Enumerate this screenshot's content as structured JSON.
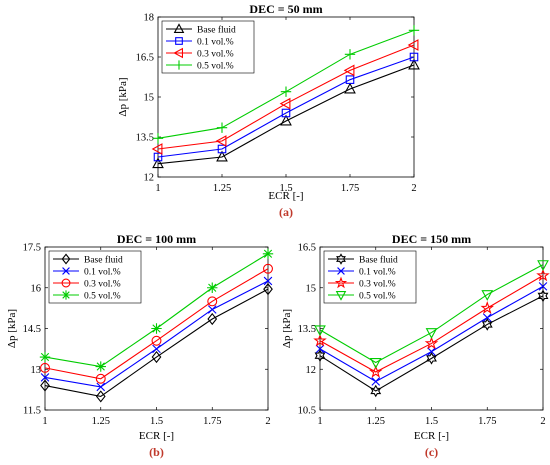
{
  "chart_data": [
    {
      "type": "line",
      "title": "DEC = 50 mm",
      "xlabel": "ECR [-]",
      "ylabel": "Δp [kPa]",
      "panel_label": "(a)",
      "x": [
        1,
        1.25,
        1.5,
        1.75,
        2
      ],
      "xticks": [
        "1",
        "1.25",
        "1.5",
        "1.75",
        "2"
      ],
      "ylim": [
        12,
        18
      ],
      "yticks": [
        "12",
        "13.5",
        "15",
        "16.5",
        "18"
      ],
      "legend_position": "top-left",
      "series": [
        {
          "name": "Base fluid",
          "color": "#000000",
          "marker": "triangle-up",
          "values": [
            12.5,
            12.75,
            14.1,
            15.3,
            16.2
          ]
        },
        {
          "name": "0.1 vol.%",
          "color": "#0000ff",
          "marker": "square",
          "values": [
            12.75,
            13.05,
            14.4,
            15.65,
            16.5
          ]
        },
        {
          "name": "0.3 vol.%",
          "color": "#ff0000",
          "marker": "triangle-left",
          "values": [
            13.05,
            13.35,
            14.75,
            16.0,
            16.95
          ]
        },
        {
          "name": "0.5 vol.%",
          "color": "#00cc00",
          "marker": "plus",
          "values": [
            13.45,
            13.85,
            15.2,
            16.6,
            17.5
          ]
        }
      ]
    },
    {
      "type": "line",
      "title": "DEC = 100 mm",
      "xlabel": "ECR [-]",
      "ylabel": "Δp [kPa]",
      "panel_label": "(b)",
      "x": [
        1,
        1.25,
        1.5,
        1.75,
        2
      ],
      "xticks": [
        "1",
        "1.25",
        "1.5",
        "1.75",
        "2"
      ],
      "ylim": [
        11.5,
        17.5
      ],
      "yticks": [
        "11.5",
        "13",
        "14.5",
        "16",
        "17.5"
      ],
      "legend_position": "top-left",
      "series": [
        {
          "name": "Base fluid",
          "color": "#000000",
          "marker": "diamond",
          "values": [
            12.4,
            12.0,
            13.45,
            14.85,
            15.95
          ]
        },
        {
          "name": "0.1 vol.%",
          "color": "#0000ff",
          "marker": "x",
          "values": [
            12.7,
            12.35,
            13.75,
            15.2,
            16.25
          ]
        },
        {
          "name": "0.3 vol.%",
          "color": "#ff0000",
          "marker": "circle",
          "values": [
            13.05,
            12.65,
            14.05,
            15.5,
            16.7
          ]
        },
        {
          "name": "0.5 vol.%",
          "color": "#00cc00",
          "marker": "asterisk",
          "values": [
            13.45,
            13.1,
            14.5,
            16.0,
            17.25
          ]
        }
      ]
    },
    {
      "type": "line",
      "title": "DEC = 150 mm",
      "xlabel": "ECR [-]",
      "ylabel": "Δp [kPa]",
      "panel_label": "(c)",
      "x": [
        1,
        1.25,
        1.5,
        1.75,
        2
      ],
      "xticks": [
        "1",
        "1.25",
        "1.5",
        "1.75",
        "2"
      ],
      "ylim": [
        10.5,
        16.5
      ],
      "yticks": [
        "10.5",
        "12",
        "13.5",
        "15",
        "16.5"
      ],
      "legend_position": "top-left",
      "series": [
        {
          "name": "Base fluid",
          "color": "#000000",
          "marker": "hexagram",
          "values": [
            12.5,
            11.2,
            12.4,
            13.65,
            14.7
          ]
        },
        {
          "name": "0.1 vol.%",
          "color": "#0000ff",
          "marker": "x",
          "values": [
            12.75,
            11.55,
            12.65,
            13.9,
            15.05
          ]
        },
        {
          "name": "0.3 vol.%",
          "color": "#ff0000",
          "marker": "pentagram",
          "values": [
            13.05,
            11.9,
            12.95,
            14.25,
            15.45
          ]
        },
        {
          "name": "0.5 vol.%",
          "color": "#00cc00",
          "marker": "triangle-down",
          "values": [
            13.45,
            12.25,
            13.35,
            14.75,
            15.85
          ]
        }
      ]
    }
  ]
}
